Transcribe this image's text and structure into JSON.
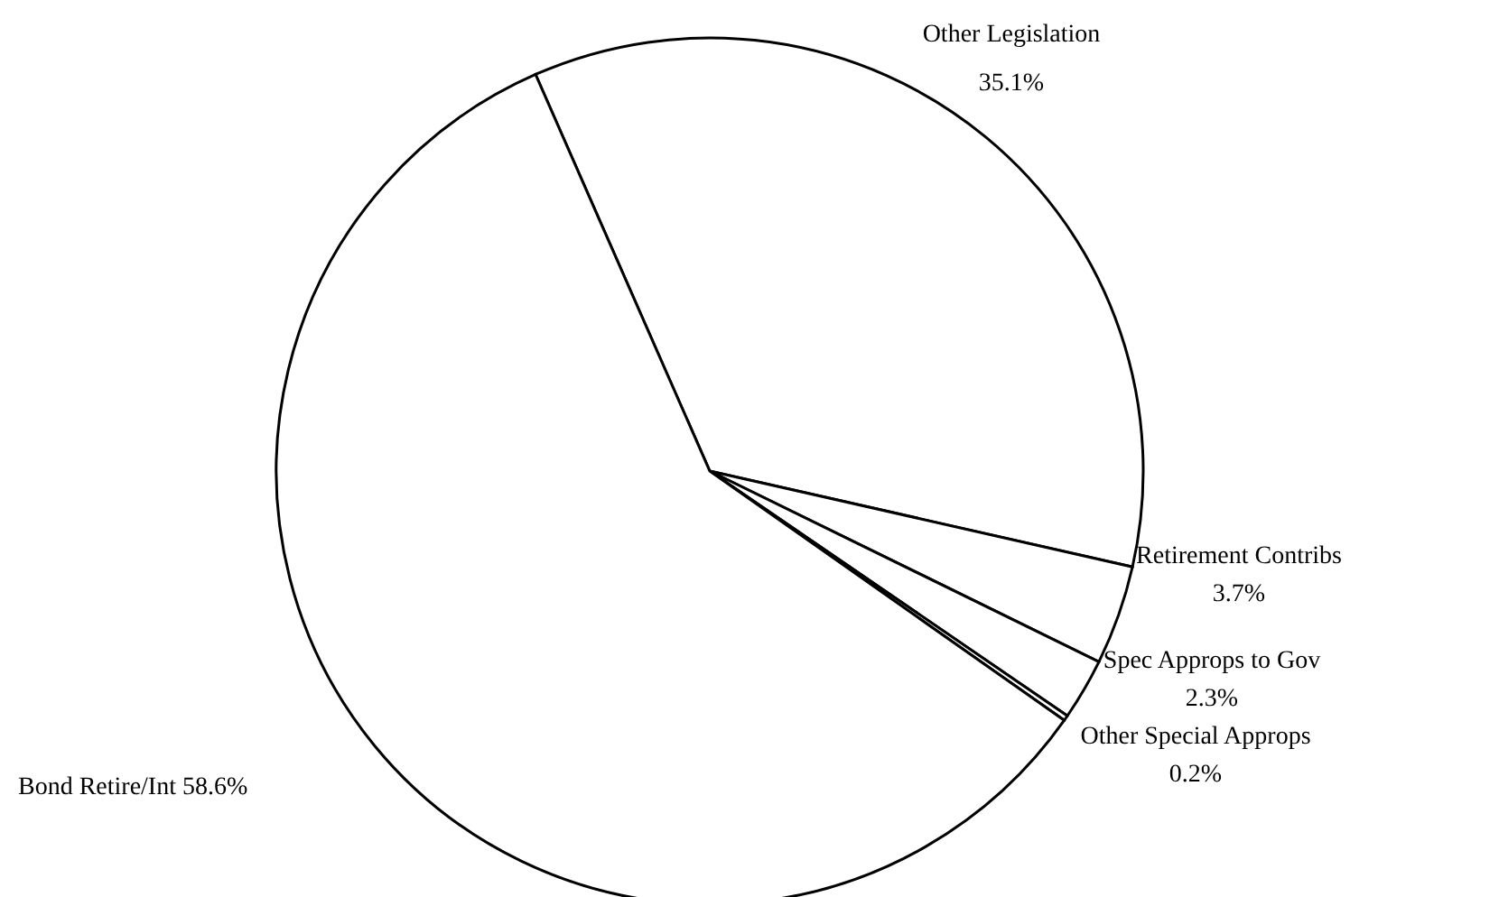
{
  "chart_data": {
    "type": "pie",
    "categories": [
      "Other Legislation",
      "Retirement Contribs",
      "Spec Approps to Gov",
      "Other Special Approps",
      "Bond Retire/Int"
    ],
    "values": [
      35.1,
      3.7,
      2.3,
      0.2,
      58.6
    ],
    "value_labels": [
      "35.1%",
      "3.7%",
      "2.3%",
      "0.2%",
      "58.6%"
    ],
    "colors": [
      "#ffffff",
      "#ffffff",
      "#ffffff",
      "#ffffff",
      "#ffffff"
    ]
  }
}
